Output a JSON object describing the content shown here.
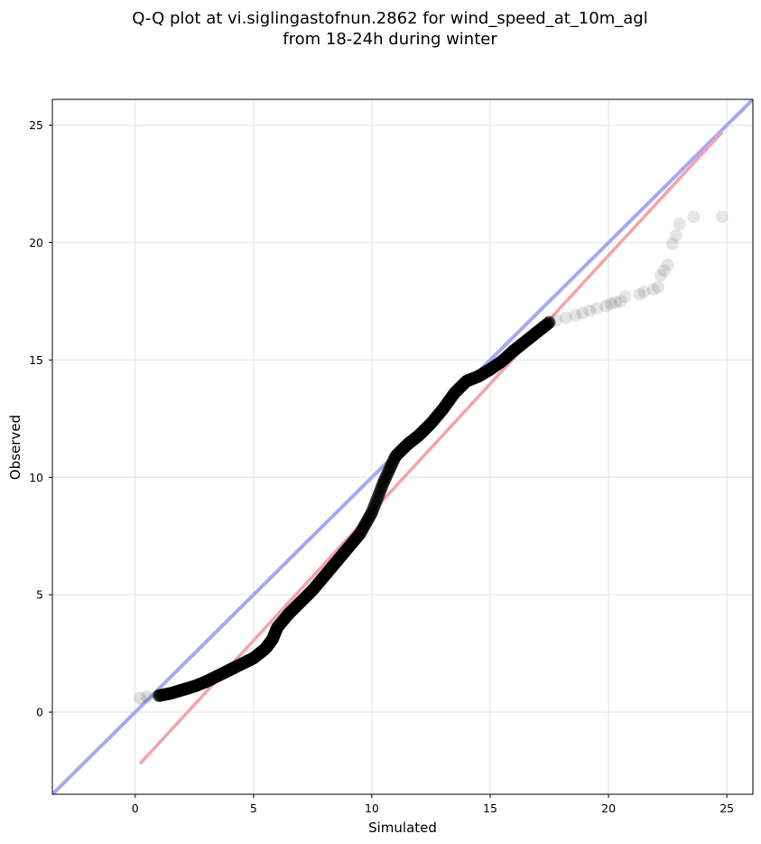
{
  "chart_data": {
    "type": "scatter",
    "title": [
      "Q-Q plot at vi.siglingastofnun.2862 for wind_speed_at_10m_agl",
      "from 18-24h during winter"
    ],
    "xlabel": "Simulated",
    "ylabel": "Observed",
    "xlim": [
      -3.5,
      26.1
    ],
    "ylim": [
      -3.5,
      26.1
    ],
    "xticks": [
      0,
      5,
      10,
      15,
      20,
      25
    ],
    "yticks": [
      0,
      5,
      10,
      15,
      20,
      25
    ],
    "grid": true,
    "colors": {
      "points": "#000000",
      "identity_line": "#a6a9f0",
      "fit_line": "#f5a3a8",
      "grid": "#ebebeb"
    },
    "identity_line": {
      "x": [
        -3.5,
        26.1
      ],
      "y": [
        -3.5,
        26.1
      ]
    },
    "fit_line": {
      "x": [
        0.2,
        24.8
      ],
      "y": [
        -2.2,
        24.7
      ]
    },
    "quantile_curve": {
      "x": [
        0.2,
        0.5,
        1.0,
        1.5,
        2.0,
        2.5,
        3.0,
        3.5,
        4.0,
        4.5,
        5.0,
        5.5,
        5.8,
        6.0,
        6.5,
        7.0,
        7.5,
        8.0,
        8.5,
        9.0,
        9.5,
        10.0,
        10.5,
        11.0,
        11.5,
        12.0,
        12.5,
        13.0,
        13.5,
        14.0,
        14.5,
        15.0,
        15.5,
        16.0,
        16.5,
        17.0,
        17.5
      ],
      "y": [
        0.6,
        0.65,
        0.7,
        0.8,
        0.95,
        1.1,
        1.3,
        1.55,
        1.8,
        2.05,
        2.3,
        2.7,
        3.1,
        3.6,
        4.2,
        4.7,
        5.2,
        5.8,
        6.4,
        7.0,
        7.6,
        8.5,
        9.8,
        10.9,
        11.4,
        11.8,
        12.3,
        12.9,
        13.6,
        14.1,
        14.3,
        14.6,
        14.95,
        15.4,
        15.8,
        16.2,
        16.6
      ]
    },
    "tail_points": {
      "x": [
        17.8,
        18.2,
        18.6,
        18.9,
        19.2,
        19.5,
        19.9,
        20.1,
        20.3,
        20.5,
        20.7,
        21.3,
        21.5,
        21.9,
        22.1,
        22.2,
        22.35,
        22.5,
        22.7,
        22.85,
        23.0,
        23.6,
        24.8
      ],
      "y": [
        16.7,
        16.8,
        16.9,
        17.0,
        17.1,
        17.2,
        17.3,
        17.4,
        17.45,
        17.5,
        17.7,
        17.8,
        17.9,
        18.0,
        18.1,
        18.6,
        18.8,
        19.05,
        19.95,
        20.3,
        20.8,
        21.1,
        21.1
      ]
    }
  }
}
